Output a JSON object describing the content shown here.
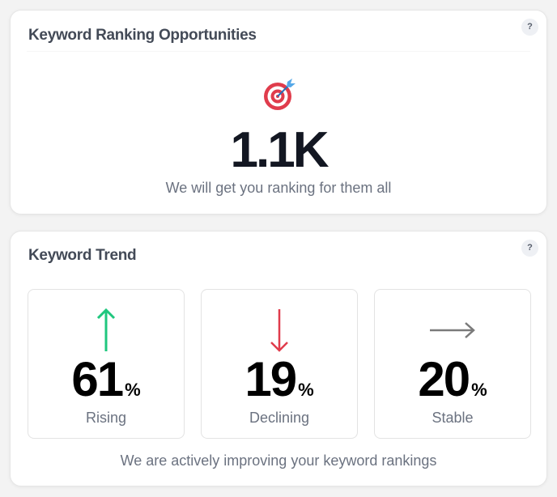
{
  "opportunities": {
    "title": "Keyword Ranking Opportunities",
    "help": "?",
    "icon": "target-dart-icon",
    "value": "1.1K",
    "subtitle": "We will get you ranking for them all"
  },
  "trend": {
    "title": "Keyword Trend",
    "help": "?",
    "items": [
      {
        "value": "61",
        "unit": "%",
        "label": "Rising",
        "icon": "arrow-up-icon",
        "color": "#1fc77e"
      },
      {
        "value": "19",
        "unit": "%",
        "label": "Declining",
        "icon": "arrow-down-icon",
        "color": "#e03c4c"
      },
      {
        "value": "20",
        "unit": "%",
        "label": "Stable",
        "icon": "arrow-right-icon",
        "color": "#7a7a7a"
      }
    ],
    "subtitle": "We are actively improving your keyword rankings"
  }
}
